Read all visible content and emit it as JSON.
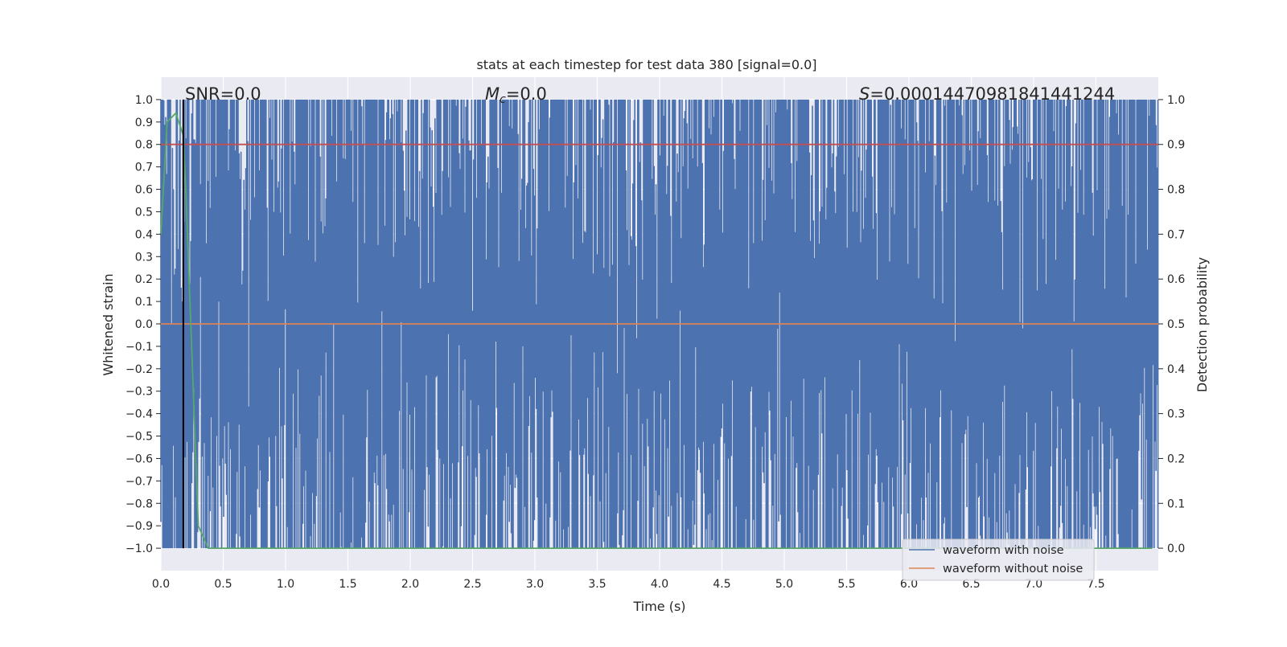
{
  "chart_data": {
    "type": "line",
    "title": "stats at each timestep for test data 380 [signal=0.0]",
    "xlabel": "Time (s)",
    "ylabel_left": "Whitened strain",
    "ylabel_right": "Detection probability",
    "xlim": [
      0.0,
      8.0
    ],
    "ylim_left": [
      -1.1,
      1.1
    ],
    "ylim_right": [
      -0.05,
      1.05
    ],
    "x_ticks": [
      "0.0",
      "0.5",
      "1.0",
      "1.5",
      "2.0",
      "2.5",
      "3.0",
      "3.5",
      "4.0",
      "4.5",
      "5.0",
      "5.5",
      "6.0",
      "6.5",
      "7.0",
      "7.5"
    ],
    "y_left_ticks": [
      "1.0",
      "0.9",
      "0.8",
      "0.7",
      "0.6",
      "0.5",
      "0.4",
      "0.3",
      "0.2",
      "0.1",
      "0.0",
      "−0.1",
      "−0.2",
      "−0.3",
      "−0.4",
      "−0.5",
      "−0.6",
      "−0.7",
      "−0.8",
      "−0.9",
      "−1.0"
    ],
    "y_right_ticks": [
      "1.0",
      "0.9",
      "0.8",
      "0.7",
      "0.6",
      "0.5",
      "0.4",
      "0.3",
      "0.2",
      "0.1",
      "0.0"
    ],
    "annotations": {
      "snr": "SNR=0.0",
      "mc_symbol": "M",
      "mc_sub": "c",
      "mc_value": "=0.0",
      "s_symbol": "S",
      "s_value": "=0.00014470981841441244"
    },
    "legend": {
      "placement": "lower-right",
      "entries": [
        {
          "label": "waveform with noise",
          "color": "#4c72b0"
        },
        {
          "label": "waveform without noise",
          "color": "#dd8452"
        }
      ]
    },
    "series": [
      {
        "name": "waveform with noise",
        "color": "#4c72b0",
        "description": "dense whitened noise clipped to [-1, 1] over 0-8 s"
      },
      {
        "name": "waveform without noise",
        "color": "#dd8452",
        "x": [
          0.0,
          8.0
        ],
        "y": [
          0.0,
          0.0
        ]
      },
      {
        "color": "#c44e52",
        "x": [
          0.0,
          8.0
        ],
        "y": [
          0.9,
          0.9
        ],
        "axis": "right"
      },
      {
        "color": "#55a868",
        "axis": "right",
        "x": [
          0.0,
          0.05,
          0.12,
          0.18,
          0.2,
          0.3,
          0.38,
          7.95
        ],
        "y": [
          0.7,
          0.95,
          0.97,
          0.92,
          0.8,
          0.05,
          0.0,
          0.0
        ]
      },
      {
        "color": "#000000",
        "type": "vline",
        "x": 0.18
      }
    ],
    "grid": true,
    "colors": {
      "background": "#eaeaf2",
      "grid": "#ffffff"
    }
  }
}
